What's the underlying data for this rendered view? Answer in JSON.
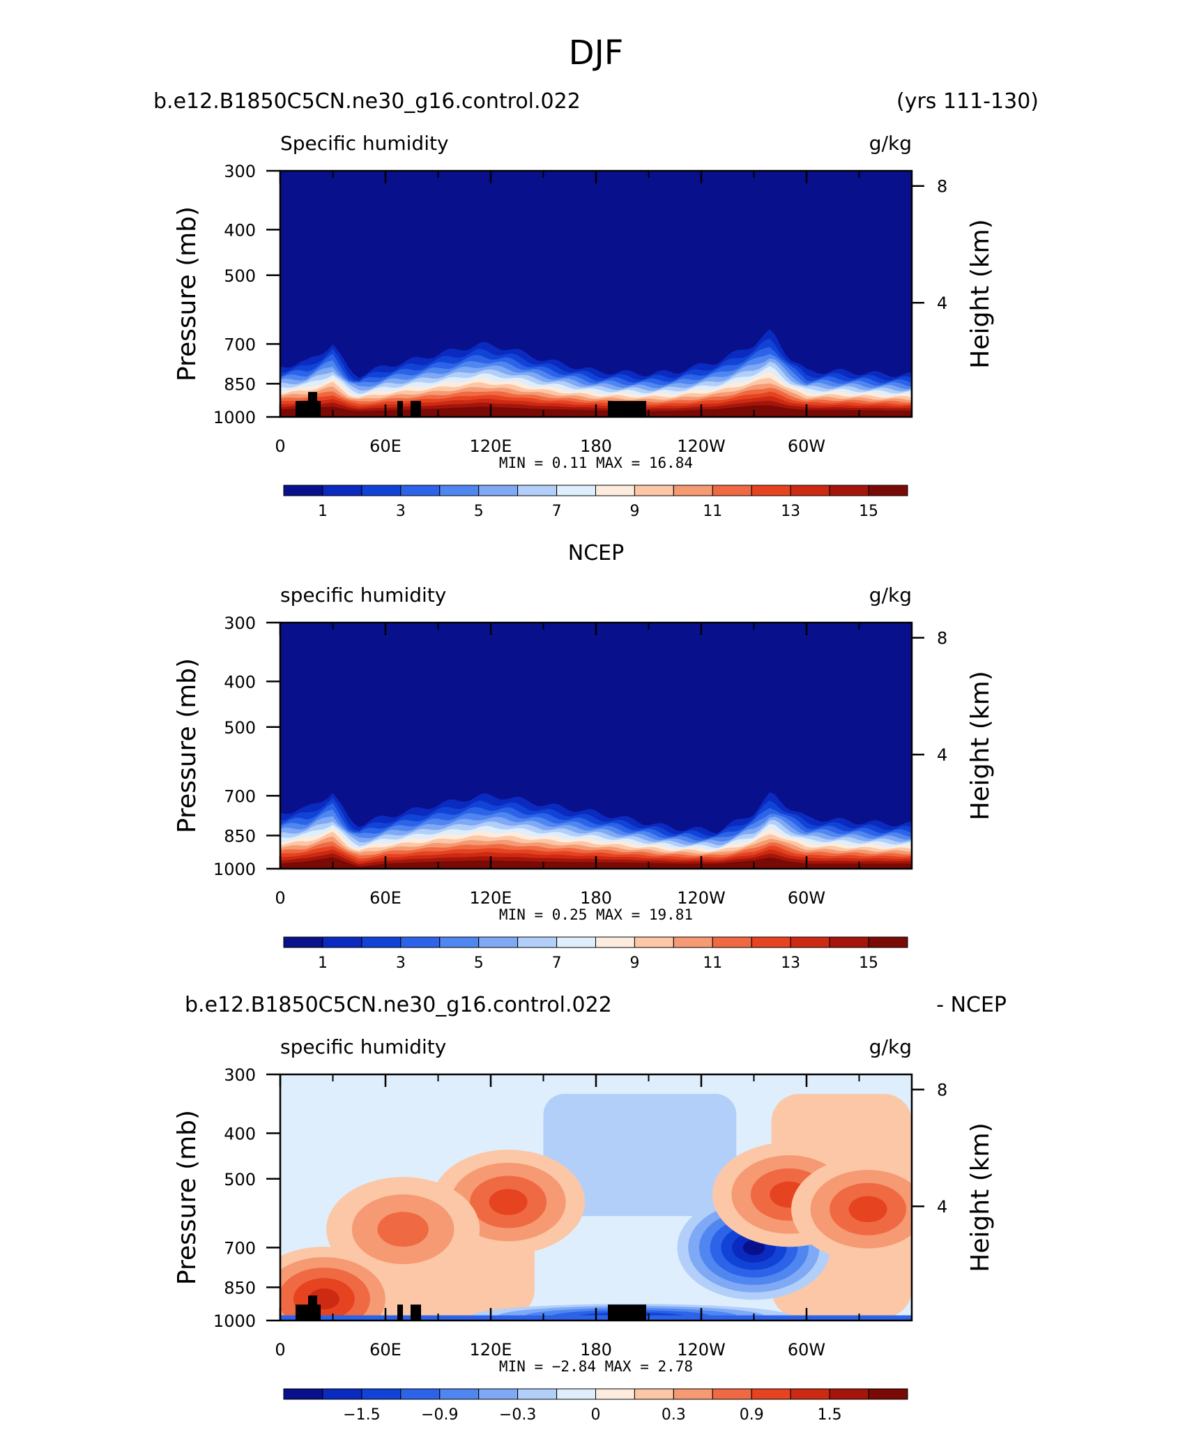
{
  "figure": {
    "title": "DJF",
    "colors": {
      "sequential": [
        "#08108C",
        "#0B2ABF",
        "#1144D6",
        "#2C63E8",
        "#4F86F0",
        "#7FA8F5",
        "#B2CFFA",
        "#DEEEFC",
        "#FDECDD",
        "#FBC7A6",
        "#F59A72",
        "#EF6A43",
        "#E64321",
        "#CC2A13",
        "#A5150B",
        "#7A0A05"
      ],
      "diverging": [
        "#08108C",
        "#0B2ABF",
        "#1144D6",
        "#2C63E8",
        "#4F86F0",
        "#7FA8F5",
        "#B2CFFA",
        "#DEEEFC",
        "#FDECDD",
        "#FBC7A6",
        "#F59A72",
        "#EF6A43",
        "#E64321",
        "#CC2A13",
        "#A5150B",
        "#7A0A05"
      ],
      "topography": "#000000"
    }
  },
  "panels": [
    {
      "header_left": "b.e12.B1850C5CN.ne30_g16.control.022",
      "header_right": "(yrs 111-130)",
      "left_title": "Specific humidity",
      "right_title": "g/kg",
      "min_max": "MIN =    0.11   MAX =   16.84",
      "colorbar_labels": [
        "1",
        "3",
        "5",
        "7",
        "9",
        "11",
        "13",
        "15"
      ]
    },
    {
      "header_center": "NCEP",
      "left_title": "specific humidity",
      "right_title": "g/kg",
      "min_max": "MIN =    0.25   MAX =   19.81",
      "colorbar_labels": [
        "1",
        "3",
        "5",
        "7",
        "9",
        "11",
        "13",
        "15"
      ]
    },
    {
      "header_left": "b.e12.B1850C5CN.ne30_g16.control.022",
      "header_right": "- NCEP",
      "left_title": "specific humidity",
      "right_title": "g/kg",
      "min_max": "MIN =  −2.84   MAX =    2.78",
      "colorbar_labels": [
        "−1.5",
        "−0.9",
        "−0.3",
        "0",
        "0.3",
        "0.9",
        "1.5"
      ]
    }
  ],
  "axes": {
    "ylabel": "Pressure (mb)",
    "y2label": "Height (km)",
    "y_ticks": [
      "300",
      "400",
      "500",
      "700",
      "850",
      "1000"
    ],
    "y2_ticks": [
      "8",
      "4"
    ],
    "x_ticks": [
      "0",
      "60E",
      "120E",
      "180",
      "120W",
      "60W"
    ]
  },
  "chart_data": [
    {
      "type": "heatmap",
      "title": "Specific humidity",
      "units": "g/kg",
      "xlabel": "",
      "ylabel": "Pressure (mb)",
      "y2label": "Height (km)",
      "x_ticks": [
        "0",
        "60E",
        "120E",
        "180",
        "120W",
        "60W"
      ],
      "y_ticks": [
        300,
        400,
        500,
        700,
        850,
        1000
      ],
      "y2_ticks": [
        8,
        4
      ],
      "min": 0.11,
      "max": 16.84,
      "contour_levels": [
        1,
        2,
        3,
        4,
        5,
        6,
        7,
        8,
        9,
        10,
        11,
        12,
        13,
        14,
        15
      ],
      "profile_lon_deg": [
        0,
        15,
        30,
        40,
        45,
        60,
        90,
        115,
        130,
        150,
        180,
        210,
        225,
        250,
        270,
        280,
        290,
        300,
        320,
        340,
        360
      ],
      "p_level_1": [
        780,
        765,
        700,
        800,
        815,
        780,
        735,
        700,
        715,
        755,
        800,
        810,
        802,
        760,
        700,
        655,
        745,
        800,
        800,
        810,
        815
      ],
      "p_level_15": [
        965,
        958,
        950,
        968,
        972,
        968,
        960,
        950,
        955,
        962,
        968,
        972,
        970,
        962,
        945,
        945,
        960,
        966,
        966,
        968,
        970
      ]
    },
    {
      "type": "heatmap",
      "title": "specific humidity",
      "units": "g/kg",
      "xlabel": "",
      "ylabel": "Pressure (mb)",
      "y2label": "Height (km)",
      "x_ticks": [
        "0",
        "60E",
        "120E",
        "180",
        "120W",
        "60W"
      ],
      "y_ticks": [
        300,
        400,
        500,
        700,
        850,
        1000
      ],
      "y2_ticks": [
        8,
        4
      ],
      "min": 0.25,
      "max": 19.81,
      "contour_levels": [
        1,
        2,
        3,
        4,
        5,
        6,
        7,
        8,
        9,
        10,
        11,
        12,
        13,
        14,
        15
      ],
      "profile_lon_deg": [
        0,
        15,
        30,
        40,
        45,
        60,
        90,
        115,
        130,
        150,
        180,
        210,
        225,
        250,
        270,
        280,
        290,
        300,
        320,
        340,
        360
      ],
      "p_level_1": [
        760,
        745,
        690,
        790,
        805,
        775,
        730,
        700,
        705,
        730,
        760,
        800,
        820,
        830,
        760,
        690,
        740,
        780,
        790,
        800,
        805
      ],
      "p_level_15": [
        975,
        965,
        945,
        975,
        990,
        975,
        965,
        960,
        962,
        966,
        968,
        972,
        975,
        975,
        960,
        945,
        965,
        975,
        975,
        975,
        975
      ]
    },
    {
      "type": "heatmap",
      "title": "specific humidity",
      "units": "g/kg",
      "xlabel": "",
      "ylabel": "Pressure (mb)",
      "y2label": "Height (km)",
      "x_ticks": [
        "0",
        "60E",
        "120E",
        "180",
        "120W",
        "60W"
      ],
      "y_ticks": [
        300,
        400,
        500,
        700,
        850,
        1000
      ],
      "y2_ticks": [
        8,
        4
      ],
      "min": -2.84,
      "max": 2.78,
      "contour_levels": [
        -2.1,
        -1.8,
        -1.5,
        -1.2,
        -0.9,
        -0.6,
        -0.3,
        0,
        0.3,
        0.6,
        0.9,
        1.2,
        1.5,
        1.8,
        2.1
      ],
      "anomalies_g_per_kg": [
        {
          "lon_deg": 130,
          "p_mb": 560,
          "value": 1.2
        },
        {
          "lon_deg": 270,
          "p_mb": 700,
          "value": -2.1
        },
        {
          "lon_deg": 290,
          "p_mb": 540,
          "value": 1.2
        },
        {
          "lon_deg": 335,
          "p_mb": 580,
          "value": 1.2
        },
        {
          "lon_deg": 70,
          "p_mb": 640,
          "value": 0.9
        },
        {
          "lon_deg": 25,
          "p_mb": 900,
          "value": 1.5
        },
        {
          "lon_deg": 200,
          "p_mb": 980,
          "value": -1.8
        }
      ]
    }
  ]
}
